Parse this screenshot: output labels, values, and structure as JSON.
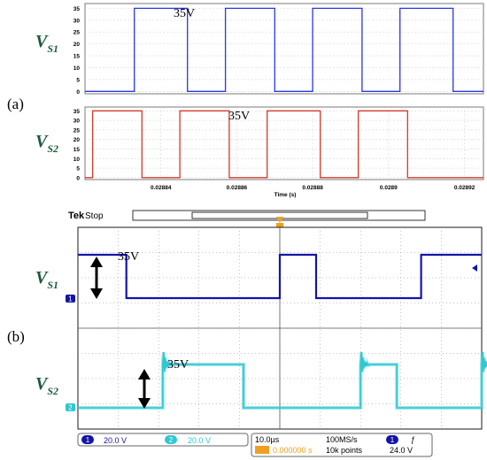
{
  "panel_labels": {
    "a": "(a)",
    "b": "(b)"
  },
  "signal_names": {
    "vs1_main": "V",
    "vs1_sub": "S1",
    "vs2_main": "V",
    "vs2_sub": "S2"
  },
  "amplitude_annotation": "35V",
  "colors": {
    "sim_vs1": "#2b36e0",
    "sim_vs2": "#d23a2a",
    "scope_ch1": "#1414a8",
    "scope_ch2": "#2ec8d0",
    "scope_bg": "#ffffff",
    "scope_grid": "#8a8a8a",
    "label_green": "#1c5a3a"
  },
  "chart_data": [
    {
      "type": "line",
      "panel": "(a) upper",
      "series": [
        {
          "name": "VS1",
          "segments": [
            [
              0.02882,
              0
            ],
            [
              0.028833,
              0
            ],
            [
              0.028833,
              35
            ],
            [
              0.028847,
              35
            ],
            [
              0.028847,
              0
            ],
            [
              0.028857,
              0
            ],
            [
              0.028857,
              35
            ],
            [
              0.02887,
              35
            ],
            [
              0.02887,
              0
            ],
            [
              0.02888,
              0
            ],
            [
              0.02888,
              35
            ],
            [
              0.028893,
              35
            ],
            [
              0.028893,
              0
            ],
            [
              0.028903,
              0
            ],
            [
              0.028903,
              35
            ],
            [
              0.028917,
              35
            ],
            [
              0.028917,
              0
            ],
            [
              0.028925,
              0
            ]
          ]
        }
      ],
      "y_ticks": [
        "0",
        "5",
        "10",
        "15",
        "20",
        "25",
        "30",
        "35"
      ],
      "ylim": [
        -1,
        37
      ],
      "xlim": [
        0.02882,
        0.028925
      ]
    },
    {
      "type": "line",
      "panel": "(a) lower",
      "series": [
        {
          "name": "VS2",
          "segments": [
            [
              0.02882,
              0
            ],
            [
              0.028822,
              0
            ],
            [
              0.028822,
              35
            ],
            [
              0.028835,
              35
            ],
            [
              0.028835,
              0
            ],
            [
              0.028845,
              0
            ],
            [
              0.028845,
              35
            ],
            [
              0.028858,
              35
            ],
            [
              0.028858,
              0
            ],
            [
              0.028868,
              0
            ],
            [
              0.028868,
              35
            ],
            [
              0.028882,
              35
            ],
            [
              0.028882,
              0
            ],
            [
              0.028892,
              0
            ],
            [
              0.028892,
              35
            ],
            [
              0.028905,
              35
            ],
            [
              0.028905,
              0
            ],
            [
              0.028925,
              0
            ]
          ]
        }
      ],
      "y_ticks": [
        "0",
        "5",
        "10",
        "15",
        "20",
        "25",
        "30",
        "35"
      ],
      "ylim": [
        -1,
        37
      ],
      "x_ticks": [
        {
          "value": 0.02884,
          "label": "0.02884"
        },
        {
          "value": 0.02886,
          "label": "0.02886"
        },
        {
          "value": 0.02888,
          "label": "0.02888"
        },
        {
          "value": 0.0289,
          "label": "0.0289"
        },
        {
          "value": 0.02892,
          "label": "0.02892"
        }
      ],
      "xlim": [
        0.02882,
        0.028925
      ],
      "xlabel": "Time (s)"
    },
    {
      "type": "line",
      "panel": "(b) oscilloscope",
      "time_per_div_us": 10,
      "volts_per_div": 20,
      "xlim_div": [
        0,
        10
      ],
      "channels": [
        {
          "name": "1",
          "scale_label": "20.0 V",
          "edges_div": [
            [
              0,
              1
            ],
            [
              0.3,
              1
            ],
            [
              1.2,
              0
            ],
            [
              4.2,
              0
            ],
            [
              5,
              1
            ],
            [
              5.9,
              0
            ],
            [
              7.6,
              0
            ],
            [
              8.5,
              1
            ],
            [
              10,
              1
            ]
          ],
          "levels_v": [
            0,
            35
          ]
        },
        {
          "name": "2",
          "scale_label": "20.0 V",
          "edges_div": [
            [
              0,
              0
            ],
            [
              1.1,
              0
            ],
            [
              2.1,
              1
            ],
            [
              3.3,
              1
            ],
            [
              4.1,
              0
            ],
            [
              6.1,
              0
            ],
            [
              7.0,
              1
            ],
            [
              7.9,
              0
            ],
            [
              9.3,
              0
            ],
            [
              10,
              1
            ]
          ],
          "levels_v": [
            0,
            35
          ]
        }
      ]
    }
  ],
  "scope": {
    "brand": "Tek",
    "state": "Stop",
    "xaxis_label": "Time (s)",
    "timebase": "10.0µs",
    "sample_rate": "100MS/s",
    "record": "10k points",
    "trigger_pos": "0.000000 s",
    "trigger_source": "1",
    "trigger_slope": "ƒ",
    "trigger_level": "24.0 V",
    "ch1_marker": "1",
    "ch2_marker": "2"
  }
}
